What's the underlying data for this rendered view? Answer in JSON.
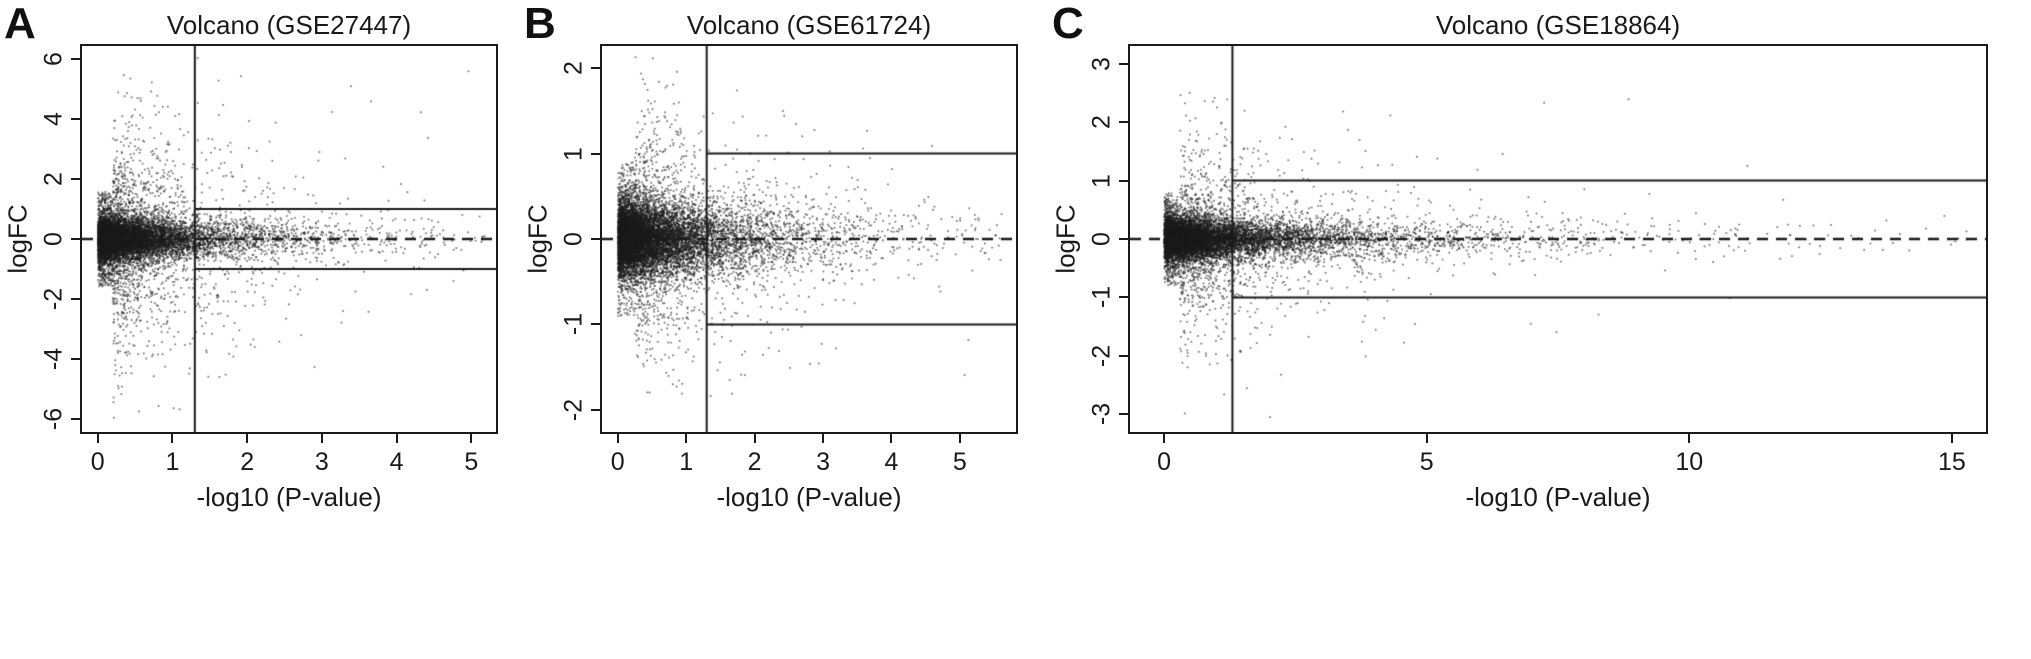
{
  "figure": {
    "background": "#ffffff",
    "axis_color": "#1a1a1a",
    "point_color": "#1c1c1c"
  },
  "chart_data": [
    {
      "type": "scatter",
      "panel_label": "A",
      "title": "Volcano (GSE27447)",
      "xlabel": "-log10 (P-value)",
      "ylabel": "logFC",
      "xlim": [
        -0.21,
        5.33
      ],
      "ylim": [
        -6.45,
        6.45
      ],
      "xticks": [
        0,
        1,
        2,
        3,
        4,
        5
      ],
      "yticks": [
        -6,
        -4,
        -2,
        0,
        2,
        4,
        6
      ],
      "grid": false,
      "legend": null,
      "threshold_lines": {
        "vline_x": 1.3,
        "hline_y": [
          -1,
          1
        ],
        "zero_line_y": 0,
        "zero_line_style": "dashed"
      },
      "points": {
        "n": 11000,
        "seed": 11,
        "x_components": [
          {
            "w": 0.64,
            "scale": 0.38,
            "offset": 0
          },
          {
            "w": 0.3,
            "scale": 1.0,
            "offset": 0.05
          },
          {
            "w": 0.06,
            "scale": 1.6,
            "offset": 0.1
          }
        ],
        "y_components": [
          {
            "w": 0.71,
            "sd": 0.33
          },
          {
            "w": 0.2,
            "sd": 0.85
          },
          {
            "w": 0.09,
            "sd": 2.3
          }
        ],
        "x_clip": [
          0.004,
          5.2
        ],
        "y_clip": 6.3,
        "funnel": {
          "big_y": 1.6,
          "x_min": 0.2,
          "push": 0.7
        }
      }
    },
    {
      "type": "scatter",
      "panel_label": "B",
      "title": "Volcano (GSE61724)",
      "xlabel": "-log10 (P-value)",
      "ylabel": "logFC",
      "xlim": [
        -0.23,
        5.82
      ],
      "ylim": [
        -2.26,
        2.26
      ],
      "xticks": [
        0,
        1,
        2,
        3,
        4,
        5
      ],
      "yticks": [
        -2,
        -1,
        0,
        1,
        2
      ],
      "grid": false,
      "legend": null,
      "threshold_lines": {
        "vline_x": 1.3,
        "hline_y": [
          -1,
          1
        ],
        "zero_line_y": 0,
        "zero_line_style": "dashed"
      },
      "points": {
        "n": 12000,
        "seed": 22,
        "x_components": [
          {
            "w": 0.62,
            "scale": 0.42,
            "offset": 0
          },
          {
            "w": 0.3,
            "scale": 1.05,
            "offset": 0.05
          },
          {
            "w": 0.08,
            "scale": 1.6,
            "offset": 0.1
          }
        ],
        "y_components": [
          {
            "w": 0.74,
            "sd": 0.2
          },
          {
            "w": 0.2,
            "sd": 0.42
          },
          {
            "w": 0.06,
            "sd": 0.8
          }
        ],
        "x_clip": [
          0.004,
          5.7
        ],
        "y_clip": 2.18,
        "funnel": {
          "big_y": 0.9,
          "x_min": 0.25,
          "push": 0.6
        }
      }
    },
    {
      "type": "scatter",
      "panel_label": "C",
      "title": "Volcano (GSE18864)",
      "xlabel": "-log10 (P-value)",
      "ylabel": "logFC",
      "xlim": [
        -0.65,
        15.65
      ],
      "ylim": [
        -3.3,
        3.3
      ],
      "xticks": [
        0,
        5,
        10,
        15
      ],
      "yticks": [
        -3,
        -2,
        -1,
        0,
        1,
        2,
        3
      ],
      "grid": false,
      "legend": null,
      "threshold_lines": {
        "vline_x": 1.3,
        "hline_y": [
          -1,
          1
        ],
        "zero_line_y": 0,
        "zero_line_style": "dashed"
      },
      "points": {
        "n": 12000,
        "seed": 33,
        "x_components": [
          {
            "w": 0.57,
            "scale": 0.55,
            "offset": 0
          },
          {
            "w": 0.31,
            "scale": 1.6,
            "offset": 0.05
          },
          {
            "w": 0.12,
            "scale": 3.2,
            "offset": 0.3
          }
        ],
        "y_components": [
          {
            "w": 0.73,
            "sd": 0.16
          },
          {
            "w": 0.19,
            "sd": 0.38
          },
          {
            "w": 0.08,
            "sd": 0.9
          }
        ],
        "x_clip": [
          0.004,
          15.3
        ],
        "y_clip": 3.08,
        "funnel": {
          "big_y": 0.8,
          "x_min": 0.3,
          "push": 1.0
        }
      }
    }
  ]
}
